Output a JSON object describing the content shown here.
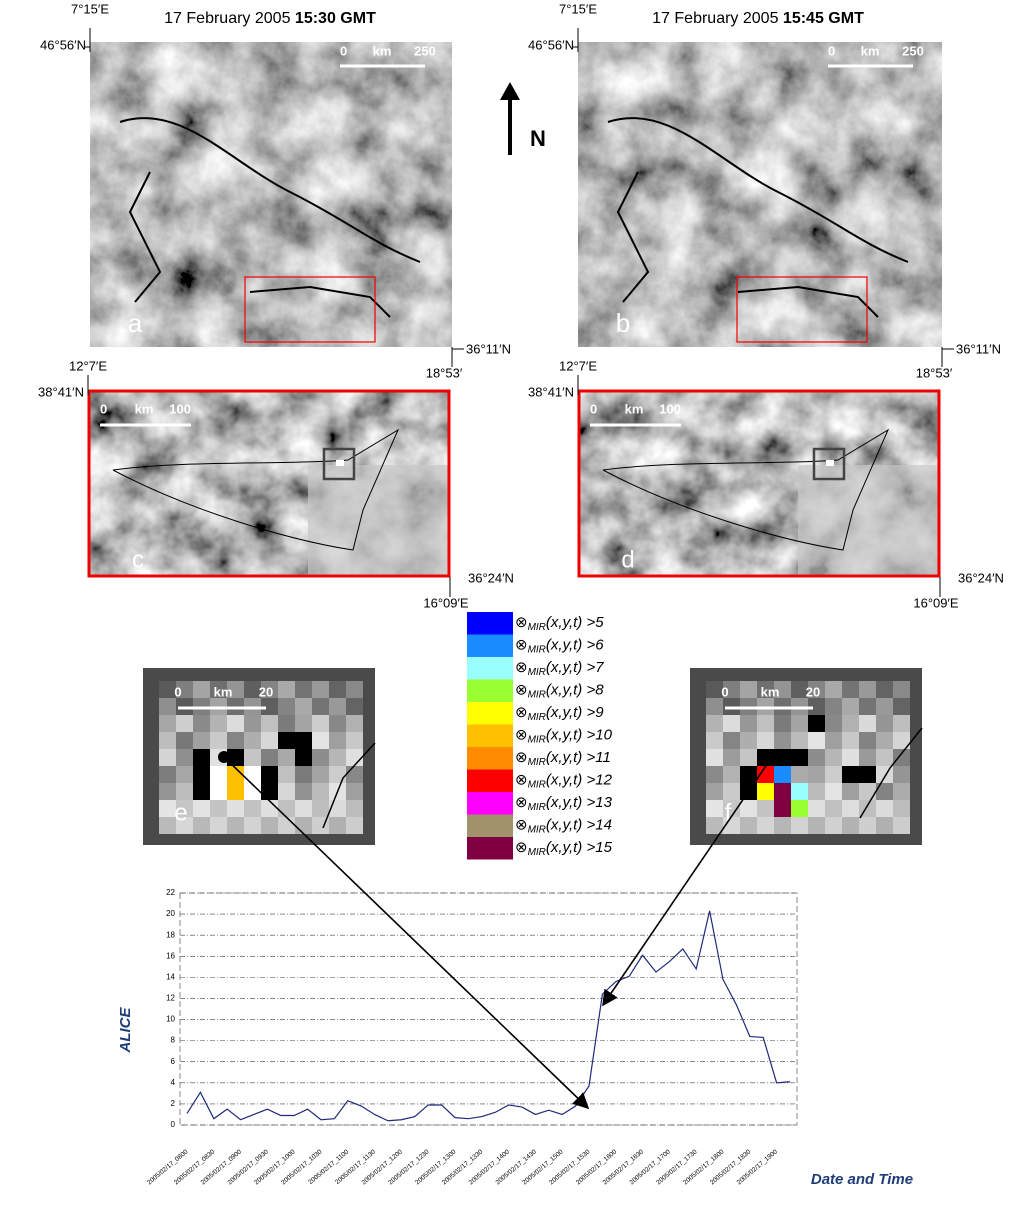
{
  "panels": [
    {
      "title_date": "17 February 2005",
      "title_time": "15:30 GMT",
      "lon_left": "7°15′E",
      "lat_top": "46°56′N",
      "lat_bottom": "36°11′N",
      "lon_right": "18°53′",
      "scale": [
        "0",
        "km",
        "250"
      ],
      "letter": "a"
    },
    {
      "title_date": "17 February 2005",
      "title_time": "15:45 GMT",
      "lon_left": "7°15′E",
      "lat_top": "46°56′N",
      "lat_bottom": "36°11′N",
      "lon_right": "18°53′",
      "scale": [
        "0",
        "km",
        "250"
      ],
      "letter": "b"
    }
  ],
  "zoom_panels": [
    {
      "lon_left": "12°7′E",
      "lat_top": "38°41′N",
      "lat_bottom": "36°24′N",
      "lon_right": "16°09′E",
      "scale": [
        "0",
        "km",
        "100"
      ],
      "letter": "c"
    },
    {
      "lon_left": "12°7′E",
      "lat_top": "38°41′N",
      "lat_bottom": "36°24′N",
      "lon_right": "16°09′E",
      "scale": [
        "0",
        "km",
        "100"
      ],
      "letter": "d"
    }
  ],
  "pixel_panels": [
    {
      "scale": [
        "0",
        "km",
        "20"
      ],
      "letter": "e"
    },
    {
      "scale": [
        "0",
        "km",
        "20"
      ],
      "letter": "f"
    }
  ],
  "north": "N",
  "legend": [
    {
      "color": "#0000ff",
      "symbol": "⊗",
      "subscript": "MIR",
      "text": "(x,y,t) >5"
    },
    {
      "color": "#1a8cff",
      "symbol": "⊗",
      "subscript": "MIR",
      "text": "(x,y,t) >6"
    },
    {
      "color": "#99ffff",
      "symbol": "⊗",
      "subscript": "MIR",
      "text": "(x,y,t) >7"
    },
    {
      "color": "#99ff33",
      "symbol": "⊗",
      "subscript": "MIR",
      "text": "(x,y,t) >8"
    },
    {
      "color": "#ffff00",
      "symbol": "⊗",
      "subscript": "MIR",
      "text": "(x,y,t) >9"
    },
    {
      "color": "#ffc000",
      "symbol": "⊗",
      "subscript": "MIR",
      "text": "(x,y,t) >10"
    },
    {
      "color": "#ff8c00",
      "symbol": "⊗",
      "subscript": "MIR",
      "text": "(x,y,t) >11"
    },
    {
      "color": "#ff0000",
      "symbol": "⊗",
      "subscript": "MIR",
      "text": "(x,y,t) >12"
    },
    {
      "color": "#ff00ff",
      "symbol": "⊗",
      "subscript": "MIR",
      "text": "(x,y,t) >13"
    },
    {
      "color": "#a0926b",
      "symbol": "⊗",
      "subscript": "MIR",
      "text": "(x,y,t) >14"
    },
    {
      "color": "#7f0040",
      "symbol": "⊗",
      "subscript": "MIR",
      "text": "(x,y,t) >15"
    }
  ],
  "chart_data": {
    "type": "line",
    "y_label": "ALICE",
    "x_label": "Date and Time",
    "color": "#1f2a7a",
    "grid": true,
    "categories": [
      "2005/02/17_0800",
      null,
      "2005/02/17_0830",
      null,
      "2005/02/17_0900",
      null,
      "2005/02/17_0930",
      null,
      "2005/02/17_1000",
      null,
      "2005/02/17_1030",
      null,
      "2005/02/17_1100",
      null,
      "2005/02/17_1130",
      null,
      "2005/02/17_1200",
      null,
      "2005/02/17_1230",
      null,
      "2005/02/17_1300",
      null,
      "2005/02/17_1330",
      null,
      "2005/02/17_1400",
      null,
      "2005/02/17_1430",
      null,
      "2005/02/17_1500",
      null,
      "2005/02/17_1530",
      null,
      "2005/02/17_1600",
      null,
      "2005/02/17_1630",
      null,
      "2005/02/17_1700",
      null,
      "2005/02/17_1730",
      null,
      "2005/02/17_1800",
      null,
      "2005/02/17_1830",
      null,
      "2005/02/17_1900",
      null
    ],
    "values": [
      1.1,
      3.1,
      0.6,
      1.5,
      0.5,
      1.0,
      1.5,
      0.9,
      0.9,
      1.5,
      0.5,
      0.6,
      2.3,
      1.8,
      1.0,
      0.4,
      0.5,
      0.8,
      1.9,
      1.9,
      0.7,
      0.6,
      0.8,
      1.2,
      1.9,
      1.7,
      1.0,
      1.4,
      1.0,
      1.8,
      3.7,
      12.4,
      13.6,
      14.1,
      16.1,
      14.5,
      15.5,
      16.7,
      14.8,
      20.3,
      13.8,
      11.4,
      8.4,
      8.3,
      4.0,
      4.1
    ],
    "ylim": [
      0,
      22
    ],
    "yticks": [
      0,
      2,
      4,
      6,
      8,
      10,
      12,
      14,
      16,
      18,
      20,
      22
    ]
  }
}
